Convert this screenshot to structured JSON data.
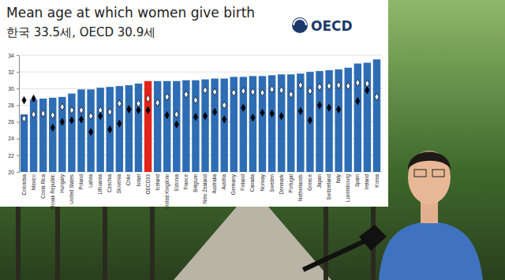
{
  "chart_data": {
    "type": "bar",
    "title": "Mean age at which women give birth",
    "subtitle": "한국 33.5세, OECD 30.9세",
    "annotations": [
      "OECD"
    ],
    "categories": [
      "Colombia",
      "Mexico",
      "Costa Rica",
      "Slovak Republic",
      "Hungary",
      "United States",
      "Poland",
      "Latvia",
      "Lithuania",
      "Czechia",
      "Slovenia",
      "Chile",
      "Israel",
      "OECD33",
      "Iceland",
      "United Kingdom",
      "Estonia",
      "France",
      "Belgium",
      "New Zealand",
      "Australia",
      "Austria",
      "Germany",
      "Finland",
      "Canada",
      "Norway",
      "Sweden",
      "Denmark",
      "Portugal",
      "Netherlands",
      "Greece",
      "Japan",
      "Switzerland",
      "Italy",
      "Luxembourg",
      "Spain",
      "Ireland",
      "Korea"
    ],
    "series": [
      {
        "type": "bar",
        "colors": [
          "#2e6db4",
          "#2e6db4",
          "#2e6db4",
          "#2e6db4",
          "#2e6db4",
          "#2e6db4",
          "#2e6db4",
          "#2e6db4",
          "#2e6db4",
          "#2e6db4",
          "#2e6db4",
          "#2e6db4",
          "#2e6db4",
          "#e2231a",
          "#2e6db4",
          "#2e6db4",
          "#2e6db4",
          "#2e6db4",
          "#2e6db4",
          "#2e6db4",
          "#2e6db4",
          "#2e6db4",
          "#2e6db4",
          "#2e6db4",
          "#2e6db4",
          "#2e6db4",
          "#2e6db4",
          "#2e6db4",
          "#2e6db4",
          "#2e6db4",
          "#2e6db4",
          "#2e6db4",
          "#2e6db4",
          "#2e6db4",
          "#2e6db4",
          "#2e6db4",
          "#2e6db4",
          "#2e6db4"
        ],
        "values": [
          26.9,
          28.7,
          28.8,
          28.9,
          29.0,
          29.4,
          29.9,
          29.9,
          30.1,
          30.2,
          30.3,
          30.4,
          30.6,
          30.9,
          30.9,
          30.9,
          30.9,
          31.0,
          31.0,
          31.1,
          31.2,
          31.2,
          31.4,
          31.4,
          31.5,
          31.5,
          31.6,
          31.7,
          31.7,
          31.8,
          32.0,
          32.1,
          32.2,
          32.3,
          32.5,
          33.0,
          33.1,
          33.5
        ]
      },
      {
        "type": "scatter",
        "marker": "diamond",
        "color": "#ffffff",
        "values": [
          26.4,
          26.9,
          27.0,
          26.8,
          27.8,
          27.4,
          27.4,
          26.7,
          27.4,
          27.2,
          28.2,
          27.6,
          28.2,
          28.8,
          28.3,
          29.0,
          26.9,
          29.3,
          28.6,
          29.8,
          29.6,
          28.0,
          29.5,
          29.7,
          29.6,
          29.5,
          29.9,
          29.8,
          29.3,
          30.4,
          29.7,
          30.2,
          30.3,
          30.4,
          30.3,
          30.7,
          30.6,
          29.0
        ]
      },
      {
        "type": "scatter",
        "marker": "diamond",
        "color": "#000000",
        "values": [
          28.6,
          28.8,
          null,
          25.3,
          26.0,
          26.2,
          26.3,
          24.8,
          26.7,
          25.1,
          25.8,
          27.5,
          27.4,
          27.4,
          null,
          26.8,
          25.7,
          null,
          26.6,
          26.7,
          27.2,
          26.3,
          null,
          27.7,
          26.5,
          27.1,
          27.0,
          26.7,
          null,
          27.3,
          26.2,
          28.0,
          27.7,
          27.5,
          null,
          28.5,
          29.8,
          null
        ]
      }
    ],
    "ylim": [
      20,
      34
    ],
    "yticks": [
      20,
      22,
      24,
      26,
      28,
      30,
      32,
      34
    ],
    "grid": true
  }
}
